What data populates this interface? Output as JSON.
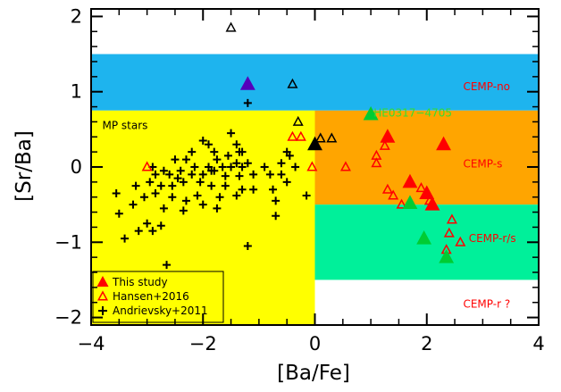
{
  "chart_data": {
    "type": "scatter",
    "xlabel": "[Ba/Fe]",
    "ylabel": "[Sr/Ba]",
    "xlim": [
      -4,
      4
    ],
    "ylim": [
      -2.1,
      2.1
    ],
    "xticks": [
      -4,
      -2,
      0,
      2,
      4
    ],
    "xtick_labels": [
      "−4",
      "−2",
      "0",
      "2",
      "4"
    ],
    "yticks": [
      -2,
      -1,
      0,
      1,
      2
    ],
    "ytick_labels": [
      "−2",
      "−1",
      "0",
      "1",
      "2"
    ],
    "regions": [
      {
        "name": "CEMP-no",
        "x": [
          -4,
          4
        ],
        "y": [
          0.75,
          1.5
        ],
        "color": "#1eb4ee"
      },
      {
        "name": "MP stars",
        "x": [
          -4,
          0
        ],
        "y": [
          -2.1,
          0.75
        ],
        "color": "#ffff00"
      },
      {
        "name": "CEMP-s",
        "x": [
          0,
          4
        ],
        "y": [
          -0.5,
          0.75
        ],
        "color": "#ffa500"
      },
      {
        "name": "CEMP-r/s",
        "x": [
          0,
          4
        ],
        "y": [
          -1.5,
          -0.5
        ],
        "color": "#00f09a"
      }
    ],
    "region_labels": [
      {
        "text": "CEMP-no",
        "x": 2.65,
        "y": 1.07,
        "color": "#ff0000"
      },
      {
        "text": "MP stars",
        "x": -3.8,
        "y": 0.55,
        "color": "#000000"
      },
      {
        "text": "CEMP-s",
        "x": 2.65,
        "y": 0.04,
        "color": "#ff0000"
      },
      {
        "text": "CEMP-r/s",
        "x": 2.75,
        "y": -0.95,
        "color": "#ff0000"
      },
      {
        "text": "CEMP-r ?",
        "x": 2.65,
        "y": -1.82,
        "color": "#ff0000"
      },
      {
        "text": "HE0317−4705",
        "x": 1.05,
        "y": 0.72,
        "color": "#33dd33"
      }
    ],
    "series": [
      {
        "name": "This study",
        "marker": "filled-triangle",
        "color": "#ff0000",
        "points": [
          [
            1.3,
            0.4
          ],
          [
            2.3,
            0.3
          ],
          [
            1.7,
            -0.2
          ],
          [
            2.0,
            -0.35
          ],
          [
            2.1,
            -0.5
          ]
        ]
      },
      {
        "name": "",
        "marker": "filled-triangle",
        "color": "#00cc33",
        "points": [
          [
            1.0,
            0.7
          ],
          [
            1.7,
            -0.48
          ],
          [
            1.95,
            -0.95
          ],
          [
            2.35,
            -1.2
          ]
        ]
      },
      {
        "name": "",
        "marker": "filled-triangle",
        "color": "#5500bb",
        "points": [
          [
            -1.2,
            1.1
          ]
        ]
      },
      {
        "name": "",
        "marker": "filled-triangle",
        "color": "#000000",
        "points": [
          [
            0.0,
            0.3
          ]
        ]
      },
      {
        "name": "",
        "marker": "open-triangle",
        "color": "#000000",
        "points": [
          [
            -1.5,
            1.85
          ],
          [
            -0.4,
            1.1
          ],
          [
            -0.3,
            0.6
          ],
          [
            0.1,
            0.38
          ],
          [
            0.3,
            0.38
          ]
        ]
      },
      {
        "name": "Hansen+2016",
        "marker": "open-triangle",
        "color": "#ff0000",
        "points": [
          [
            -3.0,
            0.0
          ],
          [
            -0.4,
            0.4
          ],
          [
            -0.25,
            0.4
          ],
          [
            -0.05,
            0.0
          ],
          [
            0.55,
            0.0
          ],
          [
            1.1,
            0.15
          ],
          [
            1.25,
            0.28
          ],
          [
            1.1,
            0.05
          ],
          [
            1.3,
            -0.3
          ],
          [
            1.4,
            -0.38
          ],
          [
            1.55,
            -0.5
          ],
          [
            1.9,
            -0.28
          ],
          [
            2.05,
            -0.45
          ],
          [
            2.45,
            -0.7
          ],
          [
            2.4,
            -0.88
          ],
          [
            2.6,
            -1.0
          ],
          [
            2.35,
            -1.1
          ]
        ]
      },
      {
        "name": "Andrievsky+2011",
        "marker": "plus",
        "color": "#000000",
        "points": [
          [
            -1.2,
            0.85
          ],
          [
            -1.5,
            0.45
          ],
          [
            -0.45,
            0.15
          ],
          [
            -2.0,
            0.35
          ],
          [
            -1.9,
            0.3
          ],
          [
            -1.4,
            0.3
          ],
          [
            -1.8,
            0.2
          ],
          [
            -1.3,
            0.2
          ],
          [
            -0.5,
            0.2
          ],
          [
            -2.5,
            0.1
          ],
          [
            -2.3,
            0.1
          ],
          [
            -2.2,
            0.2
          ],
          [
            -1.75,
            0.1
          ],
          [
            -1.55,
            0.15
          ],
          [
            -1.4,
            0.05
          ],
          [
            -1.35,
            0.2
          ],
          [
            -0.6,
            0.05
          ],
          [
            -2.9,
            0.0
          ],
          [
            -2.7,
            -0.05
          ],
          [
            -2.4,
            -0.05
          ],
          [
            -2.15,
            0.0
          ],
          [
            -1.9,
            0.0
          ],
          [
            -1.8,
            -0.05
          ],
          [
            -1.65,
            0.0
          ],
          [
            -1.5,
            0.0
          ],
          [
            -1.3,
            0.0
          ],
          [
            -1.2,
            0.05
          ],
          [
            -0.9,
            0.0
          ],
          [
            -0.35,
            0.0
          ],
          [
            -2.85,
            -0.1
          ],
          [
            -2.6,
            -0.1
          ],
          [
            -2.45,
            -0.15
          ],
          [
            -2.2,
            -0.1
          ],
          [
            -2.0,
            -0.1
          ],
          [
            -1.85,
            -0.05
          ],
          [
            -1.6,
            -0.12
          ],
          [
            -1.35,
            -0.12
          ],
          [
            -1.1,
            -0.1
          ],
          [
            -0.8,
            -0.1
          ],
          [
            -0.6,
            -0.1
          ],
          [
            -3.2,
            -0.25
          ],
          [
            -2.95,
            -0.2
          ],
          [
            -2.75,
            -0.25
          ],
          [
            -2.55,
            -0.25
          ],
          [
            -2.35,
            -0.2
          ],
          [
            -2.05,
            -0.2
          ],
          [
            -1.85,
            -0.25
          ],
          [
            -1.6,
            -0.25
          ],
          [
            -1.3,
            -0.3
          ],
          [
            -1.1,
            -0.3
          ],
          [
            -0.75,
            -0.3
          ],
          [
            -0.5,
            -0.2
          ],
          [
            -0.15,
            -0.38
          ],
          [
            -3.55,
            -0.35
          ],
          [
            -3.05,
            -0.4
          ],
          [
            -2.85,
            -0.35
          ],
          [
            -2.55,
            -0.4
          ],
          [
            -2.3,
            -0.45
          ],
          [
            -2.1,
            -0.38
          ],
          [
            -1.7,
            -0.4
          ],
          [
            -1.4,
            -0.38
          ],
          [
            -0.7,
            -0.45
          ],
          [
            -3.25,
            -0.5
          ],
          [
            -2.7,
            -0.55
          ],
          [
            -2.35,
            -0.58
          ],
          [
            -2.0,
            -0.5
          ],
          [
            -1.75,
            -0.55
          ],
          [
            -0.7,
            -0.65
          ],
          [
            -3.5,
            -0.62
          ],
          [
            -3.0,
            -0.75
          ],
          [
            -2.75,
            -0.78
          ],
          [
            -3.15,
            -0.85
          ],
          [
            -2.9,
            -0.85
          ],
          [
            -3.4,
            -0.95
          ],
          [
            -1.2,
            -1.05
          ],
          [
            -2.65,
            -1.3
          ]
        ]
      }
    ],
    "legend": {
      "position": "bottom-left",
      "entries": [
        {
          "label": "This study",
          "marker": "filled-triangle",
          "color": "#ff0000"
        },
        {
          "label": "Hansen+2016",
          "marker": "open-triangle",
          "color": "#ff0000"
        },
        {
          "label": "Andrievsky+2011",
          "marker": "plus",
          "color": "#000000"
        }
      ]
    }
  }
}
